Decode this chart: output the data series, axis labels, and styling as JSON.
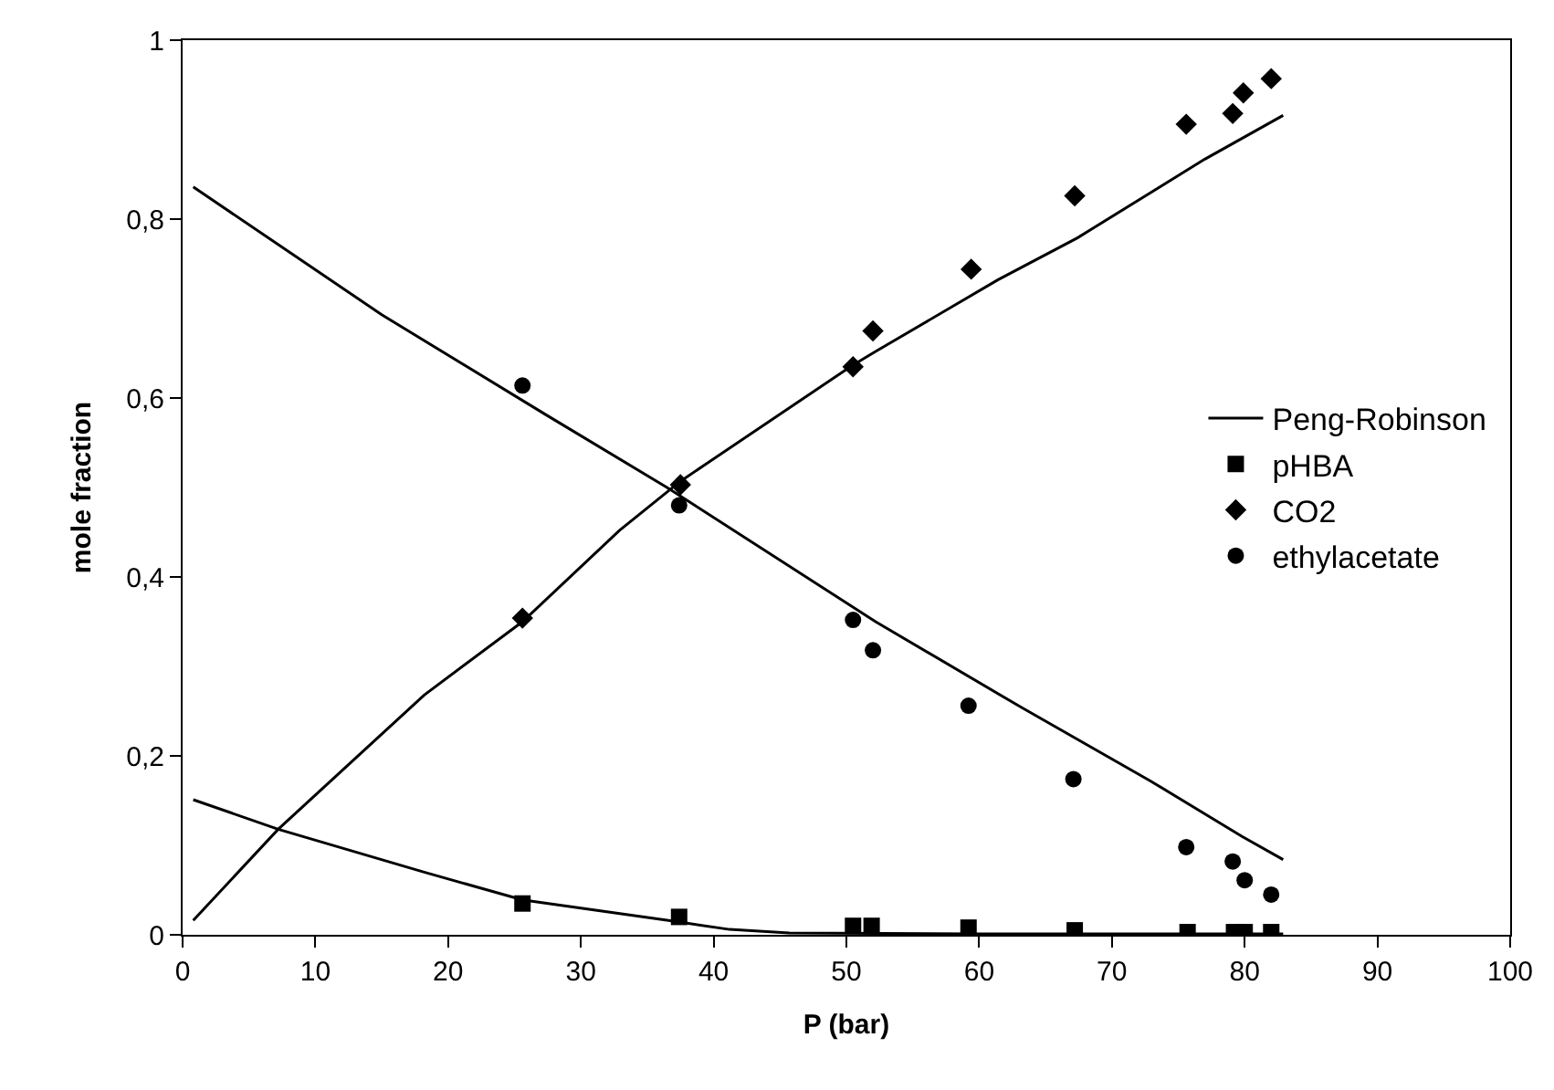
{
  "chart_data": {
    "type": "scatter",
    "xlabel": "P (bar)",
    "ylabel": "mole fraction",
    "xlim": [
      0,
      100
    ],
    "xticks": [
      0,
      10,
      20,
      30,
      40,
      50,
      60,
      70,
      80,
      90,
      100
    ],
    "ylim": [
      0,
      1
    ],
    "yticks": [
      0,
      {
        "value": 0.2,
        "label": "0,2"
      },
      {
        "value": 0.4,
        "label": "0,4"
      },
      {
        "value": 0.6,
        "label": "0,6"
      },
      {
        "value": 0.8,
        "label": "0,8"
      },
      1
    ],
    "grid": false,
    "legend": "right",
    "series": [
      {
        "name": "Peng-Robinson",
        "type": "line",
        "color": "#000000",
        "marker": "none",
        "line_style": "solid",
        "x": [
          0.8,
          15.0,
          27.4,
          36.6,
          52.2,
          63.2,
          72.9,
          79.8,
          82.9
        ],
        "values": [
          0.836,
          0.693,
          0.581,
          0.499,
          0.35,
          0.254,
          0.172,
          0.11,
          0.084
        ]
      },
      {
        "type": "line",
        "color": "#000000",
        "marker": "none",
        "line_style": "solid",
        "x": [
          0.8,
          7.2,
          18.2,
          25.6,
          32.9,
          37.5,
          50.4,
          52.2,
          61.4,
          67.4,
          77.0,
          82.9
        ],
        "values": [
          0.016,
          0.118,
          0.268,
          0.35,
          0.452,
          0.507,
          0.636,
          0.652,
          0.732,
          0.779,
          0.867,
          0.916
        ]
      },
      {
        "type": "line",
        "color": "#000000",
        "marker": "none",
        "line_style": "solid",
        "x": [
          0.8,
          7.2,
          18.2,
          25.6,
          36.6,
          41.2,
          45.7,
          60.0,
          82.9
        ],
        "values": [
          0.151,
          0.118,
          0.07,
          0.039,
          0.016,
          0.006,
          0.002,
          0.001,
          0.001
        ]
      },
      {
        "name": "pHBA",
        "color": "#000000",
        "marker": "square",
        "x": [
          25.6,
          37.4,
          50.5,
          51.9,
          59.2,
          67.2,
          75.7,
          79.2,
          80.0,
          82.0
        ],
        "values": [
          0.035,
          0.02,
          0.01,
          0.01,
          0.008,
          0.005,
          0.003,
          0.003,
          0.003,
          0.003
        ]
      },
      {
        "name": "CO2",
        "color": "#000000",
        "marker": "diamond",
        "x": [
          25.6,
          37.5,
          50.5,
          52.0,
          59.4,
          67.2,
          75.6,
          79.1,
          79.9,
          82.0
        ],
        "values": [
          0.354,
          0.503,
          0.635,
          0.675,
          0.744,
          0.826,
          0.906,
          0.918,
          0.941,
          0.957
        ]
      },
      {
        "name": "ethylacetate",
        "color": "#000000",
        "marker": "circle",
        "x": [
          25.6,
          37.4,
          50.5,
          52.0,
          59.2,
          67.1,
          75.6,
          79.1,
          80.0,
          82.0
        ],
        "values": [
          0.614,
          0.48,
          0.352,
          0.318,
          0.256,
          0.174,
          0.098,
          0.082,
          0.061,
          0.045
        ]
      }
    ]
  }
}
